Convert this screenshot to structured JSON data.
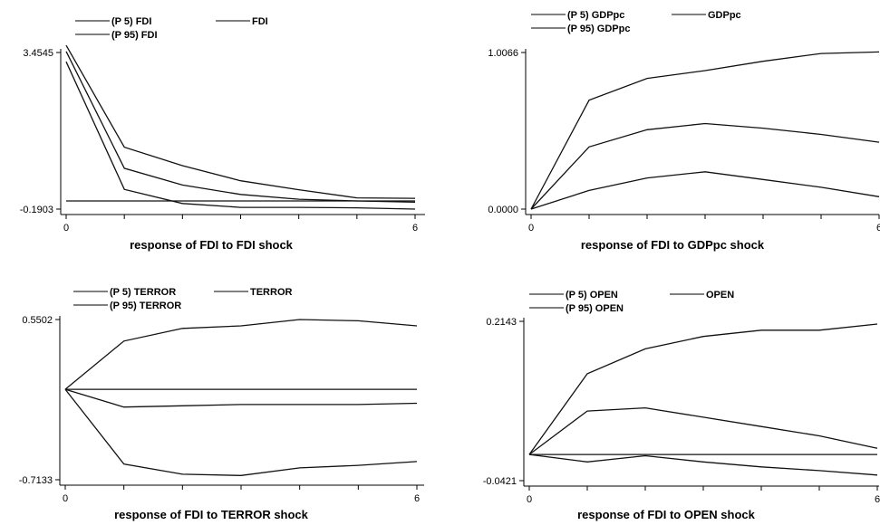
{
  "chart_data": [
    {
      "type": "line",
      "title": "response of FDI to FDI shock",
      "x": [
        0,
        1,
        2,
        3,
        4,
        5,
        6
      ],
      "xticks": [
        "0",
        "6"
      ],
      "yticks": [
        "3.4545",
        "-0.1903"
      ],
      "ylim": [
        -0.1903,
        3.4545
      ],
      "xlim": [
        0,
        6
      ],
      "legend": [
        "(P 5) FDI",
        "FDI",
        "(P 95) FDI"
      ],
      "series": [
        {
          "name": "(P 95) FDI",
          "values": [
            3.62,
            1.25,
            0.82,
            0.47,
            0.26,
            0.07,
            0.06
          ]
        },
        {
          "name": "FDI",
          "values": [
            3.48,
            0.76,
            0.37,
            0.15,
            0.04,
            0.0,
            -0.03
          ]
        },
        {
          "name": "(P 5) FDI",
          "values": [
            3.24,
            0.27,
            -0.06,
            -0.15,
            -0.15,
            -0.16,
            -0.19
          ]
        },
        {
          "name": "zero",
          "values": [
            0.0,
            0.0,
            0.0,
            0.0,
            0.0,
            0.0,
            0.0
          ]
        }
      ]
    },
    {
      "type": "line",
      "title": "response of FDI to GDPpc shock",
      "x": [
        0,
        1,
        2,
        3,
        4,
        5,
        6
      ],
      "xticks": [
        "0",
        "6"
      ],
      "yticks": [
        "1.0066",
        "0.0000"
      ],
      "ylim": [
        0.0,
        1.0066
      ],
      "xlim": [
        0,
        6
      ],
      "legend": [
        "(P 5) GDPpc",
        "GDPpc",
        "(P 95) GDPpc"
      ],
      "series": [
        {
          "name": "(P 95) GDPpc",
          "values": [
            0.0,
            0.7,
            0.84,
            0.89,
            0.95,
            1.0,
            1.01
          ]
        },
        {
          "name": "GDPpc",
          "values": [
            0.0,
            0.4,
            0.51,
            0.55,
            0.52,
            0.48,
            0.43
          ]
        },
        {
          "name": "(P 5) GDPpc",
          "values": [
            0.0,
            0.12,
            0.2,
            0.24,
            0.19,
            0.14,
            0.08
          ]
        }
      ]
    },
    {
      "type": "line",
      "title": "response of FDI to TERROR shock",
      "x": [
        0,
        1,
        2,
        3,
        4,
        5,
        6
      ],
      "xticks": [
        "0",
        "6"
      ],
      "yticks": [
        "0.5502",
        "-0.7133"
      ],
      "ylim": [
        -0.7133,
        0.5502
      ],
      "xlim": [
        0,
        6
      ],
      "legend": [
        "(P 5) TERROR",
        "TERROR",
        "(P 95) TERROR"
      ],
      "series": [
        {
          "name": "(P 95) TERROR",
          "values": [
            0.0,
            0.38,
            0.48,
            0.5,
            0.55,
            0.54,
            0.5
          ]
        },
        {
          "name": "zero",
          "values": [
            0.0,
            0.0,
            0.0,
            0.0,
            0.0,
            0.0,
            0.0
          ]
        },
        {
          "name": "TERROR",
          "values": [
            0.0,
            -0.14,
            -0.13,
            -0.12,
            -0.12,
            -0.12,
            -0.11
          ]
        },
        {
          "name": "(P 5) TERROR",
          "values": [
            0.0,
            -0.59,
            -0.67,
            -0.68,
            -0.62,
            -0.6,
            -0.57
          ]
        }
      ]
    },
    {
      "type": "line",
      "title": "response of FDI to OPEN shock",
      "x": [
        0,
        1,
        2,
        3,
        4,
        5,
        6
      ],
      "xticks": [
        "0",
        "6"
      ],
      "yticks": [
        "0.2143",
        "-0.0421"
      ],
      "ylim": [
        -0.0421,
        0.2143
      ],
      "xlim": [
        0,
        6
      ],
      "legend": [
        "(P 5) OPEN",
        "OPEN",
        "(P 95) OPEN"
      ],
      "series": [
        {
          "name": "(P 95) OPEN",
          "values": [
            0.0,
            0.13,
            0.17,
            0.19,
            0.2,
            0.2,
            0.21
          ]
        },
        {
          "name": "OPEN",
          "values": [
            0.0,
            0.07,
            0.075,
            0.06,
            0.045,
            0.03,
            0.01
          ]
        },
        {
          "name": "zero",
          "values": [
            0.0,
            0.0,
            0.0,
            0.0,
            0.0,
            0.0,
            0.0
          ]
        },
        {
          "name": "(P 5) OPEN",
          "values": [
            0.0,
            -0.012,
            -0.002,
            -0.012,
            -0.02,
            -0.026,
            -0.033
          ]
        }
      ]
    }
  ]
}
